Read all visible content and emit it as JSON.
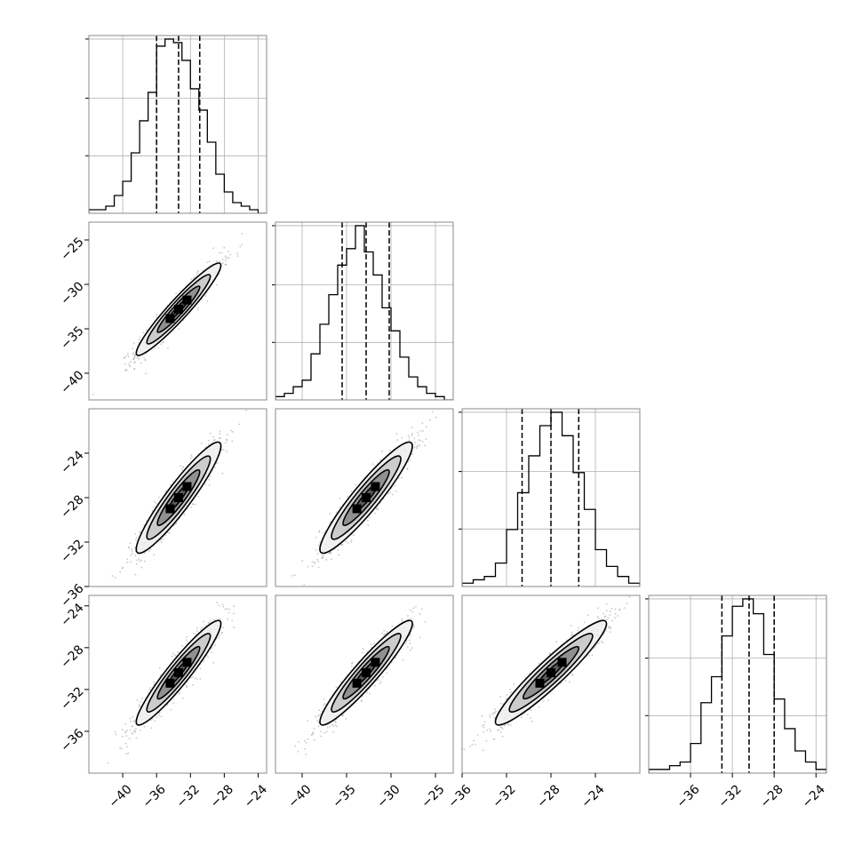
{
  "chart_data": {
    "type": "corner",
    "parameters": [
      "",
      "",
      "",
      ""
    ],
    "quantiles": [
      0.16,
      0.5,
      0.84
    ],
    "grid": true,
    "marginals": [
      {
        "range": [
          -44.0,
          -23.0
        ],
        "ticks": [
          -40,
          -36,
          -32,
          -28,
          -24
        ],
        "quantile_values": [
          -36.0,
          -33.4,
          -30.9
        ],
        "hist": {
          "bins": [
            -44,
            -43,
            -42,
            -41,
            -40,
            -39,
            -38,
            -37,
            -36,
            -35,
            -34,
            -33,
            -32,
            -31,
            -30,
            -29,
            -28,
            -27,
            -26,
            -25,
            -24,
            -23
          ],
          "counts": [
            1,
            1,
            2,
            5,
            9,
            17,
            26,
            34,
            47,
            49,
            48,
            43,
            35,
            29,
            20,
            11,
            6,
            3,
            2,
            1,
            0
          ]
        }
      },
      {
        "range": [
          -43.0,
          -23.0
        ],
        "ticks": [
          -40,
          -35,
          -30,
          -25
        ],
        "quantile_values": [
          -35.5,
          -32.8,
          -30.2
        ],
        "hist": {
          "bins": [
            -43,
            -42,
            -41,
            -40,
            -39,
            -38,
            -37,
            -36,
            -35,
            -34,
            -33,
            -32,
            -31,
            -30,
            -29,
            -28,
            -27,
            -26,
            -25,
            -24,
            -23
          ],
          "counts": [
            1,
            2,
            4,
            6,
            14,
            23,
            32,
            41,
            46,
            53,
            45,
            38,
            28,
            21,
            13,
            7,
            4,
            2,
            1,
            0
          ]
        }
      },
      {
        "range": [
          -36.0,
          -20.0
        ],
        "ticks": [
          -36,
          -32,
          -28,
          -24
        ],
        "quantile_values": [
          -30.6,
          -28.0,
          -25.5
        ],
        "hist": {
          "bins": [
            -36,
            -35,
            -34,
            -33,
            -32,
            -31,
            -30,
            -29,
            -28,
            -27,
            -26,
            -25,
            -24,
            -23,
            -22,
            -21,
            -20
          ],
          "counts": [
            1,
            2,
            3,
            7,
            17,
            28,
            39,
            48,
            52,
            45,
            34,
            23,
            11,
            6,
            3,
            1
          ]
        }
      },
      {
        "range": [
          -40.0,
          -23.0
        ],
        "ticks": [
          -36,
          -32,
          -28,
          -24
        ],
        "quantile_values": [
          -33.0,
          -30.4,
          -28.0
        ],
        "hist": {
          "bins": [
            -40,
            -39,
            -38,
            -37,
            -36,
            -35,
            -34,
            -33,
            -32,
            -31,
            -30,
            -29,
            -28,
            -27,
            -26,
            -25,
            -24,
            -23
          ],
          "counts": [
            1,
            1,
            2,
            3,
            8,
            19,
            26,
            37,
            45,
            47,
            43,
            32,
            20,
            12,
            6,
            3,
            1
          ]
        }
      }
    ],
    "joint": [
      {
        "x": 0,
        "y": 1,
        "center": [
          -33.4,
          -32.8
        ],
        "sd": [
          2.5,
          2.6
        ],
        "rho": 0.95
      },
      {
        "x": 0,
        "y": 2,
        "center": [
          -33.4,
          -28.0
        ],
        "sd": [
          2.5,
          2.5
        ],
        "rho": 0.93
      },
      {
        "x": 1,
        "y": 2,
        "center": [
          -32.8,
          -28.0
        ],
        "sd": [
          2.6,
          2.5
        ],
        "rho": 0.93
      },
      {
        "x": 0,
        "y": 3,
        "center": [
          -33.4,
          -30.4
        ],
        "sd": [
          2.5,
          2.5
        ],
        "rho": 0.94
      },
      {
        "x": 1,
        "y": 3,
        "center": [
          -32.8,
          -30.4
        ],
        "sd": [
          2.6,
          2.5
        ],
        "rho": 0.94
      },
      {
        "x": 2,
        "y": 3,
        "center": [
          -28.0,
          -30.4
        ],
        "sd": [
          2.5,
          2.5
        ],
        "rho": 0.94
      }
    ],
    "y_ticks": {
      "1": [
        -40,
        -35,
        -30,
        -25
      ],
      "2": [
        -36,
        -32,
        -28,
        -24
      ],
      "3": [
        -36,
        -32,
        -28,
        -24
      ]
    },
    "x_ticks": {
      "0": [
        -40,
        -36,
        -32,
        -28,
        -24
      ],
      "1": [
        -40,
        -35,
        -30,
        -25
      ],
      "2": [
        -36,
        -32,
        -28,
        -24
      ],
      "3": [
        -36,
        -32,
        -28,
        -24
      ]
    },
    "hist_grid_fraction": [
      0.33,
      0.66,
      1.0
    ],
    "contour_levels_sigma": [
      0.5,
      1.0,
      1.5,
      2.0
    ],
    "colors": {
      "points": "#9a9a9a",
      "contour": "#000000",
      "grid": "#b0b0b0",
      "fill_light": "#f0f0f0",
      "fill_mid": "#c8c8c8",
      "fill_dark": "#555555"
    }
  }
}
